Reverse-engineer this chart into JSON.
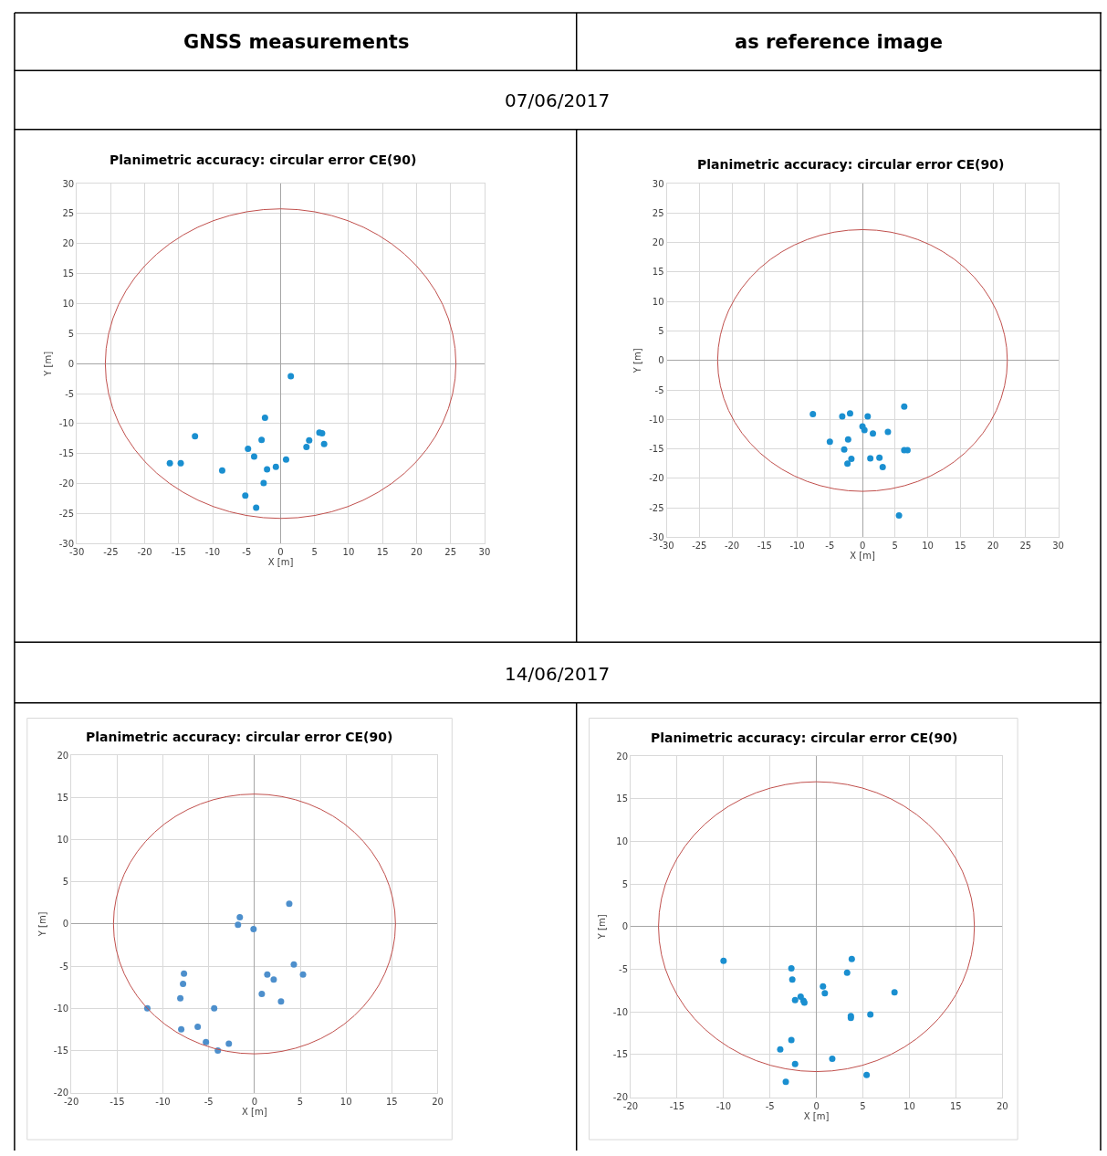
{
  "chart_data": [
    {
      "type": "scatter",
      "title": "Planimetric accuracy: circular error CE(90)",
      "xlabel": "X [m]",
      "ylabel": "Y [m]",
      "annotations": [
        "GNSS measurements",
        "07/06/2017"
      ],
      "xlim": [
        -30,
        30
      ],
      "ylim": [
        -30,
        30
      ],
      "xticks": [
        -30,
        -25,
        -20,
        -15,
        -10,
        -5,
        0,
        5,
        10,
        15,
        20,
        25,
        30
      ],
      "yticks": [
        -30,
        -25,
        -20,
        -15,
        -10,
        -5,
        0,
        5,
        10,
        15,
        20,
        25,
        30
      ],
      "grid": true,
      "marker": "circle",
      "series": [
        {
          "color": "#1a8fd0",
          "x": [
            1.5,
            -2.3,
            -12.6,
            -2.8,
            -4.8,
            -3.9,
            -16.3,
            -14.7,
            -8.6,
            -2.0,
            -0.7,
            0.8,
            3.8,
            4.2,
            5.7,
            6.1,
            6.4,
            -2.5,
            -5.2,
            -3.6
          ],
          "values": [
            -2.1,
            -9.0,
            -12.1,
            -12.7,
            -14.2,
            -15.5,
            -16.6,
            -16.6,
            -17.8,
            -17.6,
            -17.2,
            -16.0,
            -13.9,
            -12.8,
            -11.5,
            -11.6,
            -13.4,
            -19.9,
            -22.0,
            -24.0
          ]
        }
      ]
    },
    {
      "type": "scatter",
      "title": "Planimetric accuracy: circular error CE(90)",
      "xlabel": "X [m]",
      "ylabel": "Y [m]",
      "annotations": [
        "as reference image"
      ],
      "xlim": [
        -30,
        30
      ],
      "ylim": [
        -30,
        30
      ],
      "xticks": [
        -30,
        -25,
        -20,
        -15,
        -10,
        -5,
        0,
        5,
        10,
        15,
        20,
        25,
        30
      ],
      "yticks": [
        -30,
        -25,
        -20,
        -15,
        -10,
        -5,
        0,
        5,
        10,
        15,
        20,
        25,
        30
      ],
      "grid": true,
      "marker": "circle",
      "series": [
        {
          "color": "#1a8fd0",
          "x": [
            -7.6,
            -3.1,
            -1.9,
            0.8,
            6.4,
            0,
            0.3,
            1.6,
            3.9,
            -5.0,
            -2.2,
            -2.8,
            6.4,
            6.9,
            -1.7,
            -2.3,
            1.2,
            2.6,
            3.1,
            5.6
          ],
          "values": [
            -9.1,
            -9.5,
            -9.0,
            -9.5,
            -7.8,
            -11.2,
            -11.8,
            -12.4,
            -12.1,
            -13.8,
            -13.4,
            -15.1,
            -15.2,
            -15.2,
            -16.7,
            -17.5,
            -16.6,
            -16.5,
            -18.1,
            -26.3
          ]
        }
      ]
    },
    {
      "type": "scatter",
      "title": "Planimetric accuracy: circular error CE(90)",
      "xlabel": "X [m]",
      "ylabel": "Y [m]",
      "annotations": [
        "14/06/2017"
      ],
      "xlim": [
        -20,
        20
      ],
      "ylim": [
        -20,
        20
      ],
      "xticks": [
        -20,
        -15,
        -10,
        -5,
        0,
        5,
        10,
        15,
        20
      ],
      "yticks": [
        -20,
        -15,
        -10,
        -5,
        0,
        5,
        10,
        15,
        20
      ],
      "grid": true,
      "marker": "circle",
      "series": [
        {
          "color": "#4d8fcc",
          "x": [
            3.8,
            -1.6,
            -1.8,
            -0.1,
            4.3,
            5.3,
            1.4,
            2.1,
            0.8,
            2.9,
            -7.7,
            -7.8,
            -8.1,
            -11.7,
            -4.4,
            -8.0,
            -6.2,
            -5.3,
            -2.8,
            -4.0
          ],
          "values": [
            2.4,
            0.8,
            -0.1,
            -0.6,
            -4.8,
            -6.0,
            -6.0,
            -6.6,
            -8.3,
            -9.2,
            -5.9,
            -7.1,
            -8.8,
            -10.0,
            -10.0,
            -12.5,
            -12.2,
            -14.0,
            -14.2,
            -15.0
          ]
        }
      ]
    },
    {
      "type": "scatter",
      "title": "Planimetric accuracy: circular error CE(90)",
      "xlabel": "X [m]",
      "ylabel": "Y [m]",
      "xlim": [
        -20,
        20
      ],
      "ylim": [
        -20,
        20
      ],
      "xticks": [
        -20,
        -15,
        -10,
        -5,
        0,
        5,
        10,
        15,
        20
      ],
      "yticks": [
        -20,
        -15,
        -10,
        -5,
        0,
        5,
        10,
        15,
        20
      ],
      "grid": true,
      "marker": "circle",
      "series": [
        {
          "color": "#1a8fd0",
          "x": [
            -10.0,
            -2.7,
            -2.6,
            3.8,
            3.3,
            0.7,
            0.9,
            -2.3,
            -1.7,
            -1.4,
            -1.3,
            8.4,
            3.7,
            3.7,
            5.8,
            -2.7,
            -3.9,
            -2.3,
            1.7,
            5.4,
            -3.3
          ],
          "values": [
            -4.0,
            -4.9,
            -6.2,
            -3.8,
            -5.4,
            -7.0,
            -7.8,
            -8.6,
            -8.2,
            -8.7,
            -8.9,
            -7.7,
            -10.5,
            -10.7,
            -10.3,
            -13.3,
            -14.4,
            -16.1,
            -15.5,
            -17.4,
            -18.2
          ]
        }
      ]
    }
  ]
}
